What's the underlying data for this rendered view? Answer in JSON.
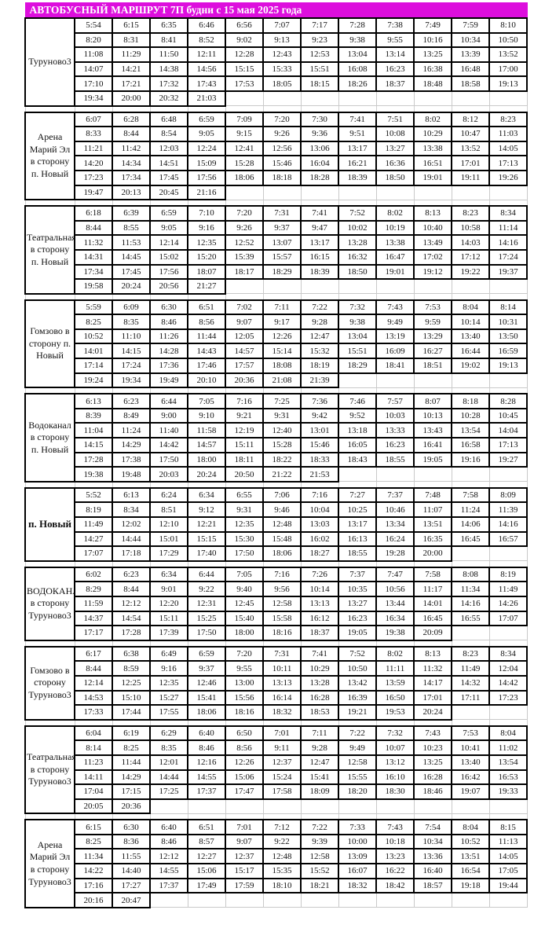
{
  "header": {
    "title": "АВТОБУСНЫЙ МАРШРУТ 7П будни с 15 мая 2025 года",
    "banner_color": "#dd0edd",
    "banner_text_color": "#ffffff"
  },
  "grid": {
    "time_columns": 12,
    "border_color": "#000000",
    "grid_color": "#cfcfcf"
  },
  "sections": [
    {
      "label": "Туруново3",
      "bold": false,
      "rows": [
        [
          "5:54",
          "6:15",
          "6:35",
          "6:46",
          "6:56",
          "7:07",
          "7:17",
          "7:28",
          "7:38",
          "7:49",
          "7:59",
          "8:10"
        ],
        [
          "8:20",
          "8:31",
          "8:41",
          "8:52",
          "9:02",
          "9:13",
          "9:23",
          "9:38",
          "9:55",
          "10:16",
          "10:34",
          "10:50"
        ],
        [
          "11:08",
          "11:29",
          "11:50",
          "12:11",
          "12:28",
          "12:43",
          "12:53",
          "13:04",
          "13:14",
          "13:25",
          "13:39",
          "13:52"
        ],
        [
          "14:07",
          "14:21",
          "14:38",
          "14:56",
          "15:15",
          "15:33",
          "15:51",
          "16:08",
          "16:23",
          "16:38",
          "16:48",
          "17:00"
        ],
        [
          "17:10",
          "17:21",
          "17:32",
          "17:43",
          "17:53",
          "18:05",
          "18:15",
          "18:26",
          "18:37",
          "18:48",
          "18:58",
          "19:13"
        ],
        [
          "19:34",
          "20:00",
          "20:32",
          "21:03"
        ]
      ]
    },
    {
      "label": "Арена Марий Эл в сторону п. Новый",
      "bold": false,
      "rows": [
        [
          "6:07",
          "6:28",
          "6:48",
          "6:59",
          "7:09",
          "7:20",
          "7:30",
          "7:41",
          "7:51",
          "8:02",
          "8:12",
          "8:23"
        ],
        [
          "8:33",
          "8:44",
          "8:54",
          "9:05",
          "9:15",
          "9:26",
          "9:36",
          "9:51",
          "10:08",
          "10:29",
          "10:47",
          "11:03"
        ],
        [
          "11:21",
          "11:42",
          "12:03",
          "12:24",
          "12:41",
          "12:56",
          "13:06",
          "13:17",
          "13:27",
          "13:38",
          "13:52",
          "14:05"
        ],
        [
          "14:20",
          "14:34",
          "14:51",
          "15:09",
          "15:28",
          "15:46",
          "16:04",
          "16:21",
          "16:36",
          "16:51",
          "17:01",
          "17:13"
        ],
        [
          "17:23",
          "17:34",
          "17:45",
          "17:56",
          "18:06",
          "18:18",
          "18:28",
          "18:39",
          "18:50",
          "19:01",
          "19:11",
          "19:26"
        ],
        [
          "19:47",
          "20:13",
          "20:45",
          "21:16"
        ]
      ]
    },
    {
      "label": "Театральная в сторону п. Новый",
      "bold": false,
      "rows": [
        [
          "6:18",
          "6:39",
          "6:59",
          "7:10",
          "7:20",
          "7:31",
          "7:41",
          "7:52",
          "8:02",
          "8:13",
          "8:23",
          "8:34"
        ],
        [
          "8:44",
          "8:55",
          "9:05",
          "9:16",
          "9:26",
          "9:37",
          "9:47",
          "10:02",
          "10:19",
          "10:40",
          "10:58",
          "11:14"
        ],
        [
          "11:32",
          "11:53",
          "12:14",
          "12:35",
          "12:52",
          "13:07",
          "13:17",
          "13:28",
          "13:38",
          "13:49",
          "14:03",
          "14:16"
        ],
        [
          "14:31",
          "14:45",
          "15:02",
          "15:20",
          "15:39",
          "15:57",
          "16:15",
          "16:32",
          "16:47",
          "17:02",
          "17:12",
          "17:24"
        ],
        [
          "17:34",
          "17:45",
          "17:56",
          "18:07",
          "18:17",
          "18:29",
          "18:39",
          "18:50",
          "19:01",
          "19:12",
          "19:22",
          "19:37"
        ],
        [
          "19:58",
          "20:24",
          "20:56",
          "21:27"
        ]
      ]
    },
    {
      "label": "Гомзово в сторону п. Новый",
      "bold": false,
      "rows": [
        [
          "5:59",
          "6:09",
          "6:30",
          "6:51",
          "7:02",
          "7:11",
          "7:22",
          "7:32",
          "7:43",
          "7:53",
          "8:04",
          "8:14"
        ],
        [
          "8:25",
          "8:35",
          "8:46",
          "8:56",
          "9:07",
          "9:17",
          "9:28",
          "9:38",
          "9:49",
          "9:59",
          "10:14",
          "10:31"
        ],
        [
          "10:52",
          "11:10",
          "11:26",
          "11:44",
          "12:05",
          "12:26",
          "12:47",
          "13:04",
          "13:19",
          "13:29",
          "13:40",
          "13:50"
        ],
        [
          "14:01",
          "14:15",
          "14:28",
          "14:43",
          "14:57",
          "15:14",
          "15:32",
          "15:51",
          "16:09",
          "16:27",
          "16:44",
          "16:59"
        ],
        [
          "17:14",
          "17:24",
          "17:36",
          "17:46",
          "17:57",
          "18:08",
          "18:19",
          "18:29",
          "18:41",
          "18:51",
          "19:02",
          "19:13"
        ],
        [
          "19:24",
          "19:34",
          "19:49",
          "20:10",
          "20:36",
          "21:08",
          "21:39"
        ]
      ]
    },
    {
      "label": "Водоканал в сторону п. Новый",
      "bold": false,
      "rows": [
        [
          "6:13",
          "6:23",
          "6:44",
          "7:05",
          "7:16",
          "7:25",
          "7:36",
          "7:46",
          "7:57",
          "8:07",
          "8:18",
          "8:28"
        ],
        [
          "8:39",
          "8:49",
          "9:00",
          "9:10",
          "9:21",
          "9:31",
          "9:42",
          "9:52",
          "10:03",
          "10:13",
          "10:28",
          "10:45"
        ],
        [
          "11:04",
          "11:24",
          "11:40",
          "11:58",
          "12:19",
          "12:40",
          "13:01",
          "13:18",
          "13:33",
          "13:43",
          "13:54",
          "14:04"
        ],
        [
          "14:15",
          "14:29",
          "14:42",
          "14:57",
          "15:11",
          "15:28",
          "15:46",
          "16:05",
          "16:23",
          "16:41",
          "16:58",
          "17:13"
        ],
        [
          "17:28",
          "17:38",
          "17:50",
          "18:00",
          "18:11",
          "18:22",
          "18:33",
          "18:43",
          "18:55",
          "19:05",
          "19:16",
          "19:27"
        ],
        [
          "19:38",
          "19:48",
          "20:03",
          "20:24",
          "20:50",
          "21:22",
          "21:53"
        ]
      ]
    },
    {
      "label": "п. Новый",
      "bold": true,
      "rows": [
        [
          "5:52",
          "6:13",
          "6:24",
          "6:34",
          "6:55",
          "7:06",
          "7:16",
          "7:27",
          "7:37",
          "7:48",
          "7:58",
          "8:09"
        ],
        [
          "8:19",
          "8:34",
          "8:51",
          "9:12",
          "9:31",
          "9:46",
          "10:04",
          "10:25",
          "10:46",
          "11:07",
          "11:24",
          "11:39"
        ],
        [
          "11:49",
          "12:02",
          "12:10",
          "12:21",
          "12:35",
          "12:48",
          "13:03",
          "13:17",
          "13:34",
          "13:51",
          "14:06",
          "14:16"
        ],
        [
          "14:27",
          "14:44",
          "15:01",
          "15:15",
          "15:30",
          "15:48",
          "16:02",
          "16:13",
          "16:24",
          "16:35",
          "16:45",
          "16:57"
        ],
        [
          "17:07",
          "17:18",
          "17:29",
          "17:40",
          "17:50",
          "18:06",
          "18:27",
          "18:55",
          "19:28",
          "20:00"
        ]
      ]
    },
    {
      "label": "ВОДОКАНАЛ в сторону Туруново3",
      "bold": false,
      "rows": [
        [
          "6:02",
          "6:23",
          "6:34",
          "6:44",
          "7:05",
          "7:16",
          "7:26",
          "7:37",
          "7:47",
          "7:58",
          "8:08",
          "8:19"
        ],
        [
          "8:29",
          "8:44",
          "9:01",
          "9:22",
          "9:40",
          "9:56",
          "10:14",
          "10:35",
          "10:56",
          "11:17",
          "11:34",
          "11:49"
        ],
        [
          "11:59",
          "12:12",
          "12:20",
          "12:31",
          "12:45",
          "12:58",
          "13:13",
          "13:27",
          "13:44",
          "14:01",
          "14:16",
          "14:26"
        ],
        [
          "14:37",
          "14:54",
          "15:11",
          "15:25",
          "15:40",
          "15:58",
          "16:12",
          "16:23",
          "16:34",
          "16:45",
          "16:55",
          "17:07"
        ],
        [
          "17:17",
          "17:28",
          "17:39",
          "17:50",
          "18:00",
          "18:16",
          "18:37",
          "19:05",
          "19:38",
          "20:09"
        ]
      ]
    },
    {
      "label": "Гомзово в сторону Туруново3",
      "bold": false,
      "rows": [
        [
          "6:17",
          "6:38",
          "6:49",
          "6:59",
          "7:20",
          "7:31",
          "7:41",
          "7:52",
          "8:02",
          "8:13",
          "8:23",
          "8:34"
        ],
        [
          "8:44",
          "8:59",
          "9:16",
          "9:37",
          "9:55",
          "10:11",
          "10:29",
          "10:50",
          "11:11",
          "11:32",
          "11:49",
          "12:04"
        ],
        [
          "12:14",
          "12:25",
          "12:35",
          "12:46",
          "13:00",
          "13:13",
          "13:28",
          "13:42",
          "13:59",
          "14:17",
          "14:32",
          "14:42"
        ],
        [
          "14:53",
          "15:10",
          "15:27",
          "15:41",
          "15:56",
          "16:14",
          "16:28",
          "16:39",
          "16:50",
          "17:01",
          "17:11",
          "17:23"
        ],
        [
          "17:33",
          "17:44",
          "17:55",
          "18:06",
          "18:16",
          "18:32",
          "18:53",
          "19:21",
          "19:53",
          "20:24"
        ]
      ]
    },
    {
      "label": "Театральная в сторону Туруново3",
      "bold": false,
      "rows": [
        [
          "6:04",
          "6:19",
          "6:29",
          "6:40",
          "6:50",
          "7:01",
          "7:11",
          "7:22",
          "7:32",
          "7:43",
          "7:53",
          "8:04"
        ],
        [
          "8:14",
          "8:25",
          "8:35",
          "8:46",
          "8:56",
          "9:11",
          "9:28",
          "9:49",
          "10:07",
          "10:23",
          "10:41",
          "11:02"
        ],
        [
          "11:23",
          "11:44",
          "12:01",
          "12:16",
          "12:26",
          "12:37",
          "12:47",
          "12:58",
          "13:12",
          "13:25",
          "13:40",
          "13:54"
        ],
        [
          "14:11",
          "14:29",
          "14:44",
          "14:55",
          "15:06",
          "15:24",
          "15:41",
          "15:55",
          "16:10",
          "16:28",
          "16:42",
          "16:53"
        ],
        [
          "17:04",
          "17:15",
          "17:25",
          "17:37",
          "17:47",
          "17:58",
          "18:09",
          "18:20",
          "18:30",
          "18:46",
          "19:07",
          "19:33"
        ],
        [
          "20:05",
          "20:36"
        ]
      ]
    },
    {
      "label": "Арена Марий Эл в сторону Туруново3",
      "bold": false,
      "rows": [
        [
          "6:15",
          "6:30",
          "6:40",
          "6:51",
          "7:01",
          "7:12",
          "7:22",
          "7:33",
          "7:43",
          "7:54",
          "8:04",
          "8:15"
        ],
        [
          "8:25",
          "8:36",
          "8:46",
          "8:57",
          "9:07",
          "9:22",
          "9:39",
          "10:00",
          "10:18",
          "10:34",
          "10:52",
          "11:13"
        ],
        [
          "11:34",
          "11:55",
          "12:12",
          "12:27",
          "12:37",
          "12:48",
          "12:58",
          "13:09",
          "13:23",
          "13:36",
          "13:51",
          "14:05"
        ],
        [
          "14:22",
          "14:40",
          "14:55",
          "15:06",
          "15:17",
          "15:35",
          "15:52",
          "16:07",
          "16:22",
          "16:40",
          "16:54",
          "17:05"
        ],
        [
          "17:16",
          "17:27",
          "17:37",
          "17:49",
          "17:59",
          "18:10",
          "18:21",
          "18:32",
          "18:42",
          "18:57",
          "19:18",
          "19:44"
        ],
        [
          "20:16",
          "20:47"
        ]
      ]
    }
  ]
}
